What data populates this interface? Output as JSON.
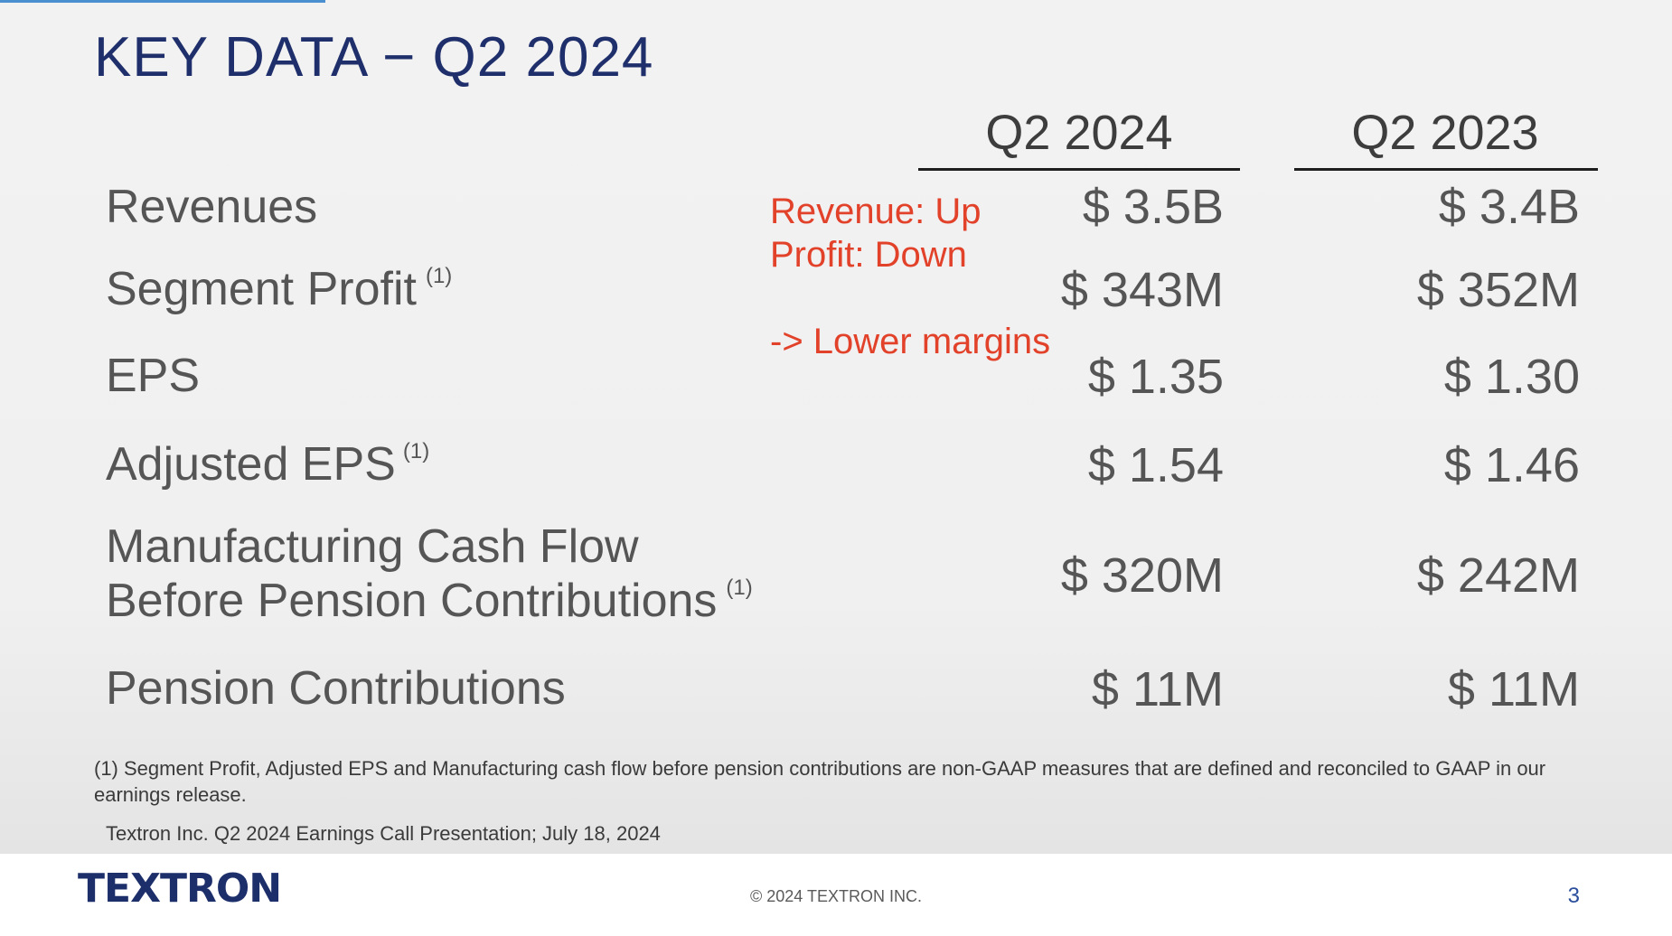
{
  "title": "KEY DATA − Q2 2024",
  "columns": [
    "Q2 2024",
    "Q2 2023"
  ],
  "rows": [
    {
      "label": "Revenues",
      "note": "",
      "q2_2024": "$ 3.5B",
      "q2_2023": "$ 3.4B"
    },
    {
      "label": "Segment Profit",
      "note": "(1)",
      "q2_2024": "$ 343M",
      "q2_2023": "$ 352M"
    },
    {
      "label": "EPS",
      "note": "",
      "q2_2024": "$ 1.35",
      "q2_2023": "$ 1.30"
    },
    {
      "label": "Adjusted EPS",
      "note": "(1)",
      "q2_2024": "$ 1.54",
      "q2_2023": "$ 1.46"
    },
    {
      "label_line1": "Manufacturing Cash Flow",
      "label_line2": "Before Pension Contributions",
      "note": "(1)",
      "q2_2024": "$ 320M",
      "q2_2023": "$ 242M"
    },
    {
      "label": "Pension Contributions",
      "note": "",
      "q2_2024": "$ 11M",
      "q2_2023": "$ 11M"
    }
  ],
  "annotation": {
    "line1": "Revenue: Up",
    "line2": "Profit: Down",
    "line3": "-> Lower margins"
  },
  "footnote": "(1) Segment Profit, Adjusted EPS and Manufacturing cash flow before pension contributions are non-GAAP measures that are defined and reconciled to GAAP in our earnings release.",
  "source": "Textron Inc. Q2 2024 Earnings Call Presentation; July 18, 2024",
  "footer": {
    "logo": "TEXTRON",
    "copyright": "© 2024 TEXTRON INC.",
    "page_number": "3"
  },
  "colors": {
    "title": "#1f2f6b",
    "annotation": "#e2412a",
    "logo": "#1d2f6a",
    "page_number": "#2a4d9c",
    "accent": "#4a8fd0"
  }
}
